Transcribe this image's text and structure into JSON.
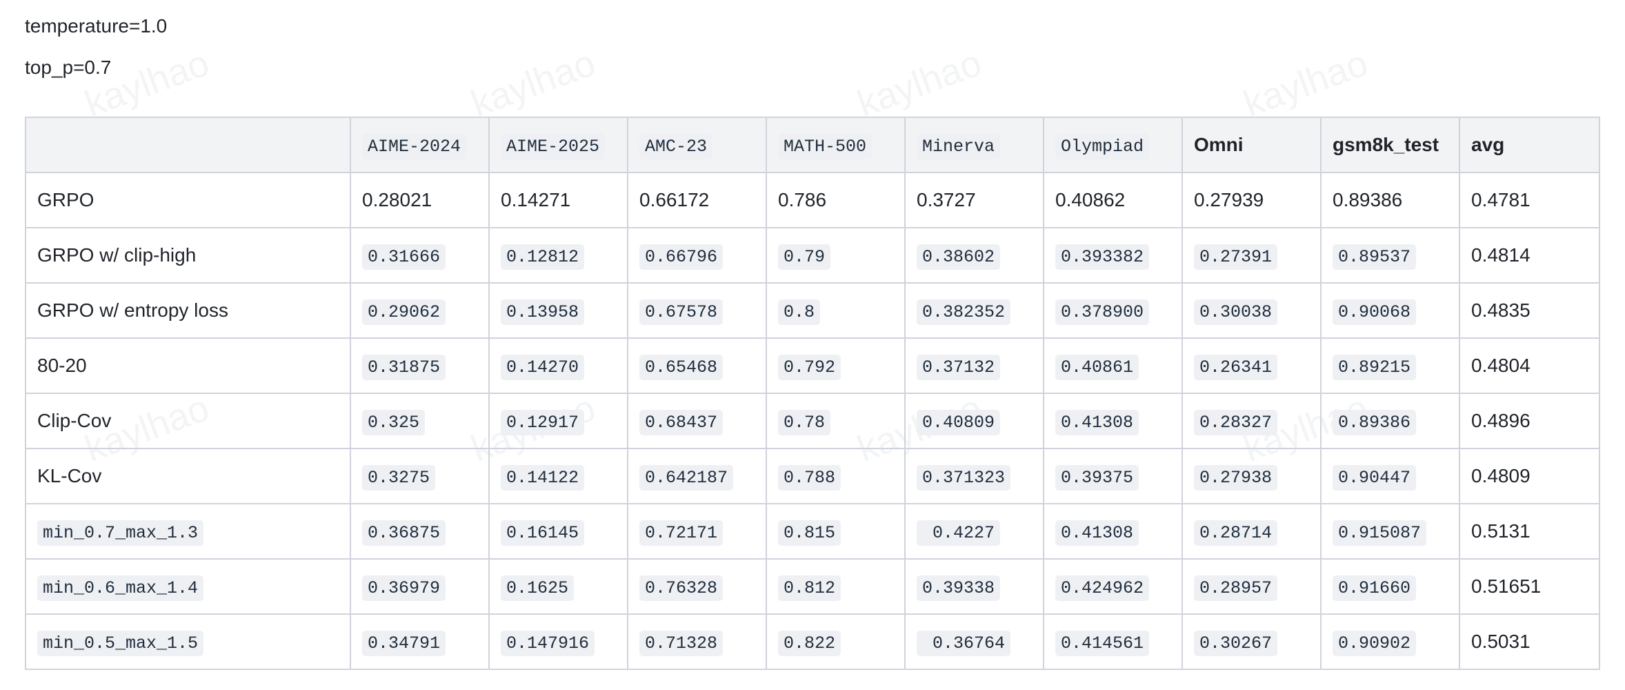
{
  "params": [
    "temperature=1.0",
    "top_p=0.7"
  ],
  "watermark": "kaylhao",
  "table": {
    "columns": [
      {
        "label": "",
        "code": false
      },
      {
        "label": "AIME-2024",
        "code": true
      },
      {
        "label": "AIME-2025",
        "code": true
      },
      {
        "label": "AMC-23",
        "code": true
      },
      {
        "label": "MATH-500",
        "code": true
      },
      {
        "label": "Minerva",
        "code": true
      },
      {
        "label": "Olympiad",
        "code": true
      },
      {
        "label": "Omni",
        "code": false
      },
      {
        "label": "gsm8k_test",
        "code": false
      },
      {
        "label": "avg",
        "code": false
      }
    ],
    "rows": [
      {
        "method": "GRPO",
        "method_code": false,
        "values_code": false,
        "values": [
          "0.28021",
          "0.14271",
          "0.66172",
          "0.786",
          "0.3727",
          "0.40862",
          "0.27939",
          "0.89386"
        ],
        "avg": "0.4781"
      },
      {
        "method": "GRPO w/ clip-high",
        "method_code": false,
        "values_code": true,
        "values": [
          "0.31666",
          "0.12812",
          "0.66796",
          "0.79",
          "0.38602",
          "0.393382",
          "0.27391",
          "0.89537"
        ],
        "avg": "0.4814"
      },
      {
        "method": "GRPO w/ entropy loss",
        "method_code": false,
        "values_code": true,
        "values": [
          "0.29062",
          "0.13958",
          "0.67578",
          "0.8",
          "0.382352",
          "0.378900",
          "0.30038",
          "0.90068"
        ],
        "avg": "0.4835"
      },
      {
        "method": "80-20",
        "method_code": false,
        "values_code": true,
        "values": [
          "0.31875",
          "0.14270",
          "0.65468",
          "0.792",
          "0.37132",
          "0.40861",
          "0.26341",
          "0.89215"
        ],
        "avg": "0.4804"
      },
      {
        "method": "Clip-Cov",
        "method_code": false,
        "values_code": true,
        "values": [
          "0.325",
          "0.12917",
          "0.68437",
          "0.78",
          "0.40809",
          "0.41308",
          "0.28327",
          "0.89386"
        ],
        "avg": "0.4896"
      },
      {
        "method": "KL-Cov",
        "method_code": false,
        "values_code": true,
        "values": [
          "0.3275",
          "0.14122",
          "0.642187",
          "0.788",
          "0.371323",
          "0.39375",
          "0.27938",
          "0.90447"
        ],
        "avg": "0.4809"
      },
      {
        "method": "min_0.7_max_1.3",
        "method_code": true,
        "values_code": true,
        "values": [
          "0.36875",
          "0.16145",
          "0.72171",
          "0.815",
          " 0.4227",
          "0.41308",
          "0.28714",
          "0.915087"
        ],
        "avg": "0.5131"
      },
      {
        "method": "min_0.6_max_1.4",
        "method_code": true,
        "values_code": true,
        "values": [
          "0.36979",
          "0.1625",
          "0.76328",
          "0.812",
          "0.39338",
          "0.424962",
          "0.28957",
          "0.91660"
        ],
        "avg": "0.51651"
      },
      {
        "method": "min_0.5_max_1.5",
        "method_code": true,
        "values_code": true,
        "values": [
          "0.34791",
          "0.147916",
          "0.71328",
          "0.822",
          " 0.36764",
          "0.414561",
          "0.30267",
          "0.90902"
        ],
        "avg": "0.5031"
      }
    ]
  }
}
